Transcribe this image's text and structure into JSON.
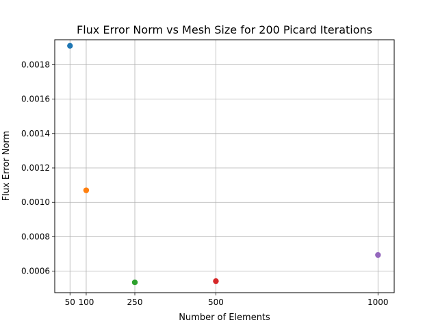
{
  "chart_data": {
    "type": "scatter",
    "title": "Flux Error Norm vs Mesh Size for 200 Picard Iterations",
    "xlabel": "Number of Elements",
    "ylabel": "Flux Error Norm",
    "xlim": [
      3,
      1050
    ],
    "ylim": [
      0.000475,
      0.001945
    ],
    "xticks": [
      50,
      100,
      250,
      500,
      1000
    ],
    "yticks": [
      0.0006,
      0.0008,
      0.001,
      0.0012,
      0.0014,
      0.0016,
      0.0018
    ],
    "ytick_labels": [
      "0.0006",
      "0.0008",
      "0.0010",
      "0.0012",
      "0.0014",
      "0.0016",
      "0.0018"
    ],
    "grid": true,
    "points": [
      {
        "x": 50,
        "y": 0.00191,
        "color": "#1f77b4"
      },
      {
        "x": 100,
        "y": 0.00107,
        "color": "#ff7f0e"
      },
      {
        "x": 250,
        "y": 0.000535,
        "color": "#2ca02c"
      },
      {
        "x": 500,
        "y": 0.000542,
        "color": "#d62728"
      },
      {
        "x": 1000,
        "y": 0.000694,
        "color": "#9467bd"
      }
    ]
  }
}
